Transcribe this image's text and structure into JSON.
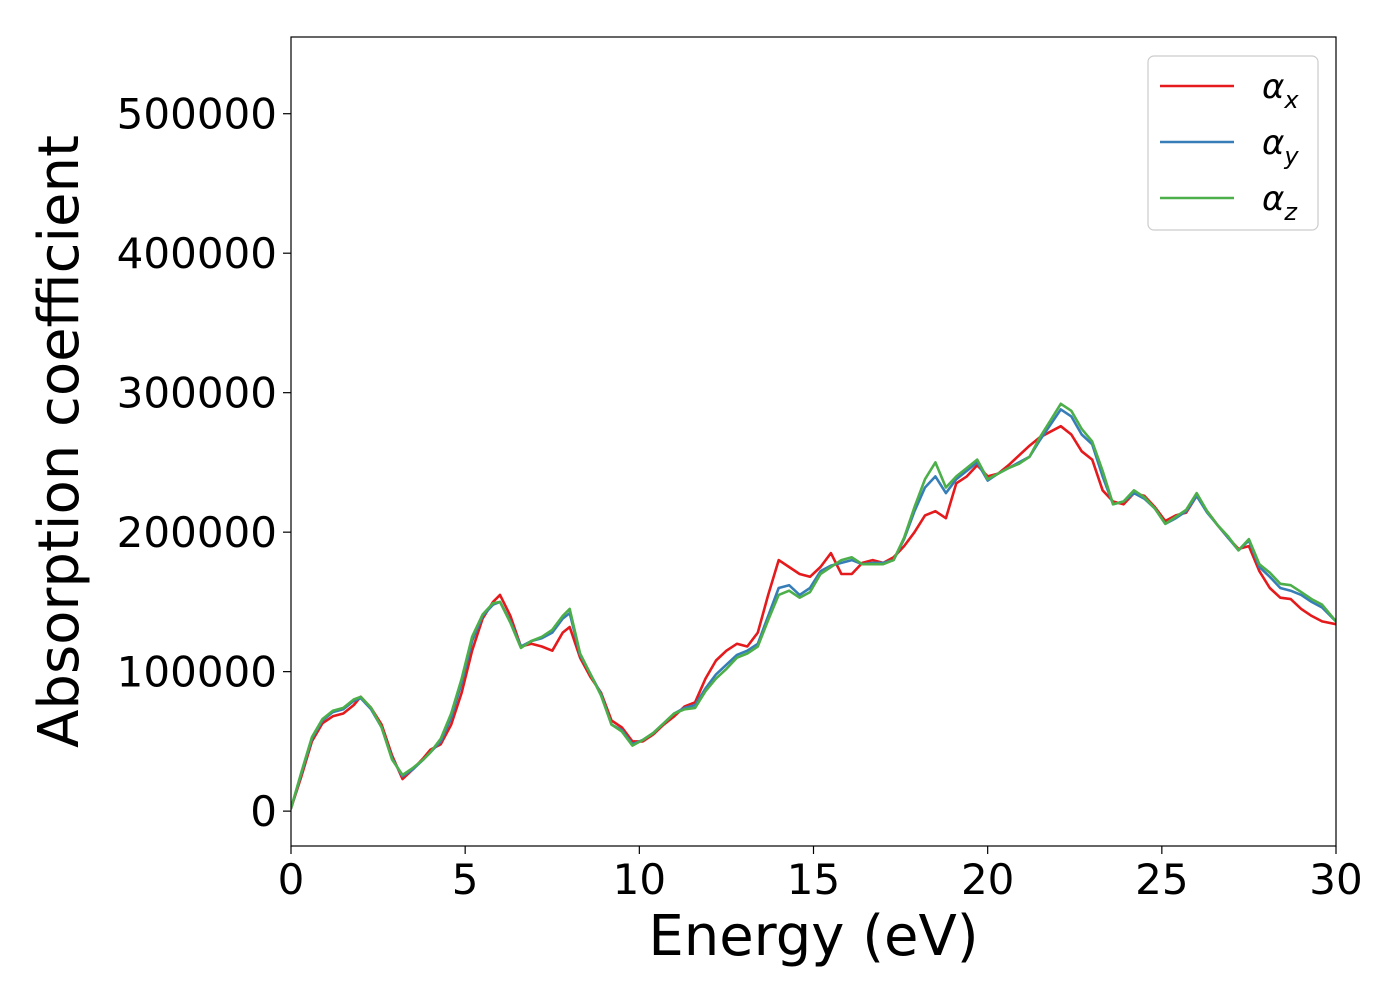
{
  "chart_data": {
    "type": "line",
    "title": "",
    "xlabel": "Energy (eV)",
    "ylabel": "Absorption coefficient",
    "xlim": [
      0,
      30
    ],
    "ylim": [
      -25000,
      555000
    ],
    "xticks": [
      0,
      5,
      10,
      15,
      20,
      25,
      30
    ],
    "yticks": [
      0,
      100000,
      200000,
      300000,
      400000,
      500000
    ],
    "grid": false,
    "legend_position": "top-right",
    "series": [
      {
        "name": "αx",
        "color": "#e41a1c",
        "x": [
          0,
          0.3,
          0.6,
          0.9,
          1.2,
          1.5,
          1.8,
          2.0,
          2.3,
          2.6,
          2.9,
          3.2,
          3.5,
          3.8,
          4.0,
          4.3,
          4.6,
          4.9,
          5.2,
          5.5,
          5.8,
          6.0,
          6.3,
          6.6,
          6.9,
          7.2,
          7.5,
          7.8,
          8.0,
          8.3,
          8.6,
          8.9,
          9.2,
          9.5,
          9.8,
          10.1,
          10.4,
          10.7,
          11.0,
          11.3,
          11.6,
          11.9,
          12.2,
          12.5,
          12.8,
          13.1,
          13.4,
          13.7,
          14.0,
          14.3,
          14.6,
          14.9,
          15.2,
          15.5,
          15.8,
          16.1,
          16.4,
          16.7,
          17.0,
          17.3,
          17.6,
          17.9,
          18.2,
          18.5,
          18.8,
          19.1,
          19.4,
          19.7,
          20.0,
          20.3,
          20.6,
          20.9,
          21.2,
          21.5,
          21.8,
          22.1,
          22.4,
          22.7,
          23.0,
          23.3,
          23.6,
          23.9,
          24.2,
          24.5,
          24.8,
          25.1,
          25.4,
          25.7,
          26.0,
          26.3,
          26.6,
          26.9,
          27.2,
          27.5,
          27.8,
          28.1,
          28.4,
          28.7,
          29.0,
          29.3,
          29.6,
          30.0
        ],
        "y": [
          2000,
          25000,
          50000,
          63000,
          68000,
          70000,
          76000,
          82000,
          74000,
          62000,
          40000,
          23000,
          30000,
          38000,
          44000,
          48000,
          62000,
          85000,
          115000,
          138000,
          150000,
          155000,
          140000,
          118000,
          120000,
          118000,
          115000,
          128000,
          132000,
          110000,
          96000,
          85000,
          65000,
          60000,
          50000,
          50000,
          55000,
          62000,
          68000,
          75000,
          78000,
          95000,
          108000,
          115000,
          120000,
          118000,
          128000,
          155000,
          180000,
          175000,
          170000,
          168000,
          175000,
          185000,
          170000,
          170000,
          178000,
          180000,
          178000,
          182000,
          190000,
          200000,
          212000,
          215000,
          210000,
          235000,
          240000,
          248000,
          240000,
          242000,
          248000,
          255000,
          262000,
          268000,
          272000,
          276000,
          270000,
          258000,
          252000,
          230000,
          222000,
          220000,
          228000,
          226000,
          218000,
          208000,
          212000,
          214000,
          226000,
          215000,
          205000,
          196000,
          188000,
          190000,
          172000,
          160000,
          153000,
          152000,
          145000,
          140000,
          136000,
          134000
        ]
      },
      {
        "name": "αy",
        "color": "#377eb8",
        "x": [
          0,
          0.3,
          0.6,
          0.9,
          1.2,
          1.5,
          1.8,
          2.0,
          2.3,
          2.6,
          2.9,
          3.2,
          3.5,
          3.8,
          4.0,
          4.3,
          4.6,
          4.9,
          5.2,
          5.5,
          5.8,
          6.0,
          6.3,
          6.6,
          6.9,
          7.2,
          7.5,
          7.8,
          8.0,
          8.3,
          8.6,
          8.9,
          9.2,
          9.5,
          9.8,
          10.1,
          10.4,
          10.7,
          11.0,
          11.3,
          11.6,
          11.9,
          12.2,
          12.5,
          12.8,
          13.1,
          13.4,
          13.7,
          14.0,
          14.3,
          14.6,
          14.9,
          15.2,
          15.5,
          15.8,
          16.1,
          16.4,
          16.7,
          17.0,
          17.3,
          17.6,
          17.9,
          18.2,
          18.5,
          18.8,
          19.1,
          19.4,
          19.7,
          20.0,
          20.3,
          20.6,
          20.9,
          21.2,
          21.5,
          21.8,
          22.1,
          22.4,
          22.7,
          23.0,
          23.3,
          23.6,
          23.9,
          24.2,
          24.5,
          24.8,
          25.1,
          25.4,
          25.7,
          26.0,
          26.3,
          26.6,
          26.9,
          27.2,
          27.5,
          27.8,
          28.1,
          28.4,
          28.7,
          29.0,
          29.3,
          29.6,
          30.0
        ],
        "y": [
          2000,
          27000,
          52000,
          65000,
          71000,
          73000,
          79000,
          81000,
          73000,
          60000,
          38000,
          25000,
          30000,
          37000,
          42000,
          50000,
          67000,
          92000,
          122000,
          140000,
          148000,
          150000,
          136000,
          118000,
          122000,
          124000,
          128000,
          138000,
          142000,
          112000,
          98000,
          84000,
          62000,
          58000,
          48000,
          51000,
          56000,
          63000,
          70000,
          74000,
          76000,
          88000,
          98000,
          105000,
          112000,
          115000,
          120000,
          140000,
          160000,
          162000,
          155000,
          160000,
          172000,
          176000,
          178000,
          180000,
          177000,
          178000,
          178000,
          180000,
          195000,
          215000,
          232000,
          240000,
          228000,
          238000,
          244000,
          250000,
          237000,
          242000,
          246000,
          250000,
          254000,
          266000,
          277000,
          288000,
          283000,
          270000,
          263000,
          240000,
          220000,
          222000,
          228000,
          224000,
          217000,
          206000,
          210000,
          215000,
          226000,
          214000,
          205000,
          196000,
          187000,
          194000,
          175000,
          168000,
          160000,
          158000,
          155000,
          150000,
          146000,
          136000
        ]
      },
      {
        "name": "αz",
        "color": "#4daf4a",
        "x": [
          0,
          0.3,
          0.6,
          0.9,
          1.2,
          1.5,
          1.8,
          2.0,
          2.3,
          2.6,
          2.9,
          3.2,
          3.5,
          3.8,
          4.0,
          4.3,
          4.6,
          4.9,
          5.2,
          5.5,
          5.8,
          6.0,
          6.3,
          6.6,
          6.9,
          7.2,
          7.5,
          7.8,
          8.0,
          8.3,
          8.6,
          8.9,
          9.2,
          9.5,
          9.8,
          10.1,
          10.4,
          10.7,
          11.0,
          11.3,
          11.6,
          11.9,
          12.2,
          12.5,
          12.8,
          13.1,
          13.4,
          13.7,
          14.0,
          14.3,
          14.6,
          14.9,
          15.2,
          15.5,
          15.8,
          16.1,
          16.4,
          16.7,
          17.0,
          17.3,
          17.6,
          17.9,
          18.2,
          18.5,
          18.8,
          19.1,
          19.4,
          19.7,
          20.0,
          20.3,
          20.6,
          20.9,
          21.2,
          21.5,
          21.8,
          22.1,
          22.4,
          22.7,
          23.0,
          23.3,
          23.6,
          23.9,
          24.2,
          24.5,
          24.8,
          25.1,
          25.4,
          25.7,
          26.0,
          26.3,
          26.6,
          26.9,
          27.2,
          27.5,
          27.8,
          28.1,
          28.4,
          28.7,
          29.0,
          29.3,
          29.6,
          30.0
        ],
        "y": [
          2000,
          28000,
          53000,
          66000,
          72000,
          74000,
          80000,
          82000,
          74000,
          60000,
          37000,
          26000,
          31000,
          37000,
          42000,
          52000,
          70000,
          95000,
          125000,
          141000,
          149000,
          150000,
          135000,
          117000,
          122000,
          125000,
          130000,
          140000,
          145000,
          113000,
          98000,
          83000,
          62000,
          57000,
          47000,
          51000,
          56000,
          63000,
          70000,
          73000,
          74000,
          86000,
          95000,
          102000,
          110000,
          113000,
          118000,
          137000,
          155000,
          158000,
          153000,
          157000,
          170000,
          175000,
          180000,
          182000,
          177000,
          177000,
          177000,
          180000,
          196000,
          218000,
          238000,
          250000,
          232000,
          240000,
          246000,
          252000,
          238000,
          242000,
          246000,
          249000,
          254000,
          268000,
          280000,
          292000,
          287000,
          274000,
          265000,
          244000,
          220000,
          222000,
          230000,
          225000,
          217000,
          206000,
          211000,
          216000,
          228000,
          215000,
          205000,
          197000,
          187000,
          195000,
          177000,
          171000,
          163000,
          162000,
          157000,
          152000,
          148000,
          136000
        ]
      }
    ]
  }
}
